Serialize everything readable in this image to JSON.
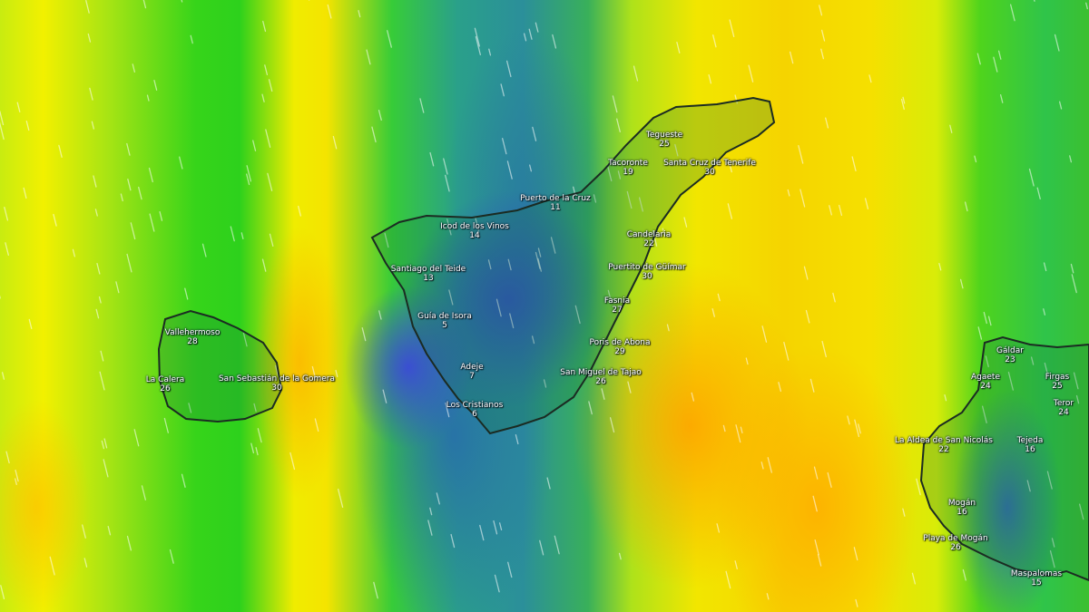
{
  "map": {
    "type": "wind-speed-overlay",
    "colors": {
      "low": "#3a4fd0",
      "mid": "#2fd11c",
      "high": "#f5e600",
      "peak": "#f5b400"
    },
    "locations": [
      {
        "name": "Tegueste",
        "value": "25"
      },
      {
        "name": "Tacoronte",
        "value": "19"
      },
      {
        "name": "Santa Cruz de Tenerife",
        "value": "30"
      },
      {
        "name": "Puerto de la Cruz",
        "value": "11"
      },
      {
        "name": "Icod de los Vinos",
        "value": "14"
      },
      {
        "name": "Candelaria",
        "value": "22"
      },
      {
        "name": "Santiago del Teide",
        "value": "13"
      },
      {
        "name": "Puertito de Güímar",
        "value": "30"
      },
      {
        "name": "Fasnia",
        "value": "27"
      },
      {
        "name": "Guía de Isora",
        "value": "5"
      },
      {
        "name": "Poris de Abona",
        "value": "29"
      },
      {
        "name": "Adeje",
        "value": "7"
      },
      {
        "name": "San Miguel de Tajao",
        "value": "26"
      },
      {
        "name": "Los Cristianos",
        "value": "6"
      },
      {
        "name": "Vallehermoso",
        "value": "28"
      },
      {
        "name": "La Calera",
        "value": "26"
      },
      {
        "name": "San Sebastián de la Gomera",
        "value": "30"
      },
      {
        "name": "Gáldar",
        "value": "23"
      },
      {
        "name": "Agaete",
        "value": "24"
      },
      {
        "name": "Firgas",
        "value": "25"
      },
      {
        "name": "Teror",
        "value": "24"
      },
      {
        "name": "La Aldea de San Nicolás",
        "value": "22"
      },
      {
        "name": "Tejeda",
        "value": "16"
      },
      {
        "name": "Mogán",
        "value": "16"
      },
      {
        "name": "Playa de Mogán",
        "value": "26"
      },
      {
        "name": "Maspalomas",
        "value": "15"
      }
    ]
  }
}
